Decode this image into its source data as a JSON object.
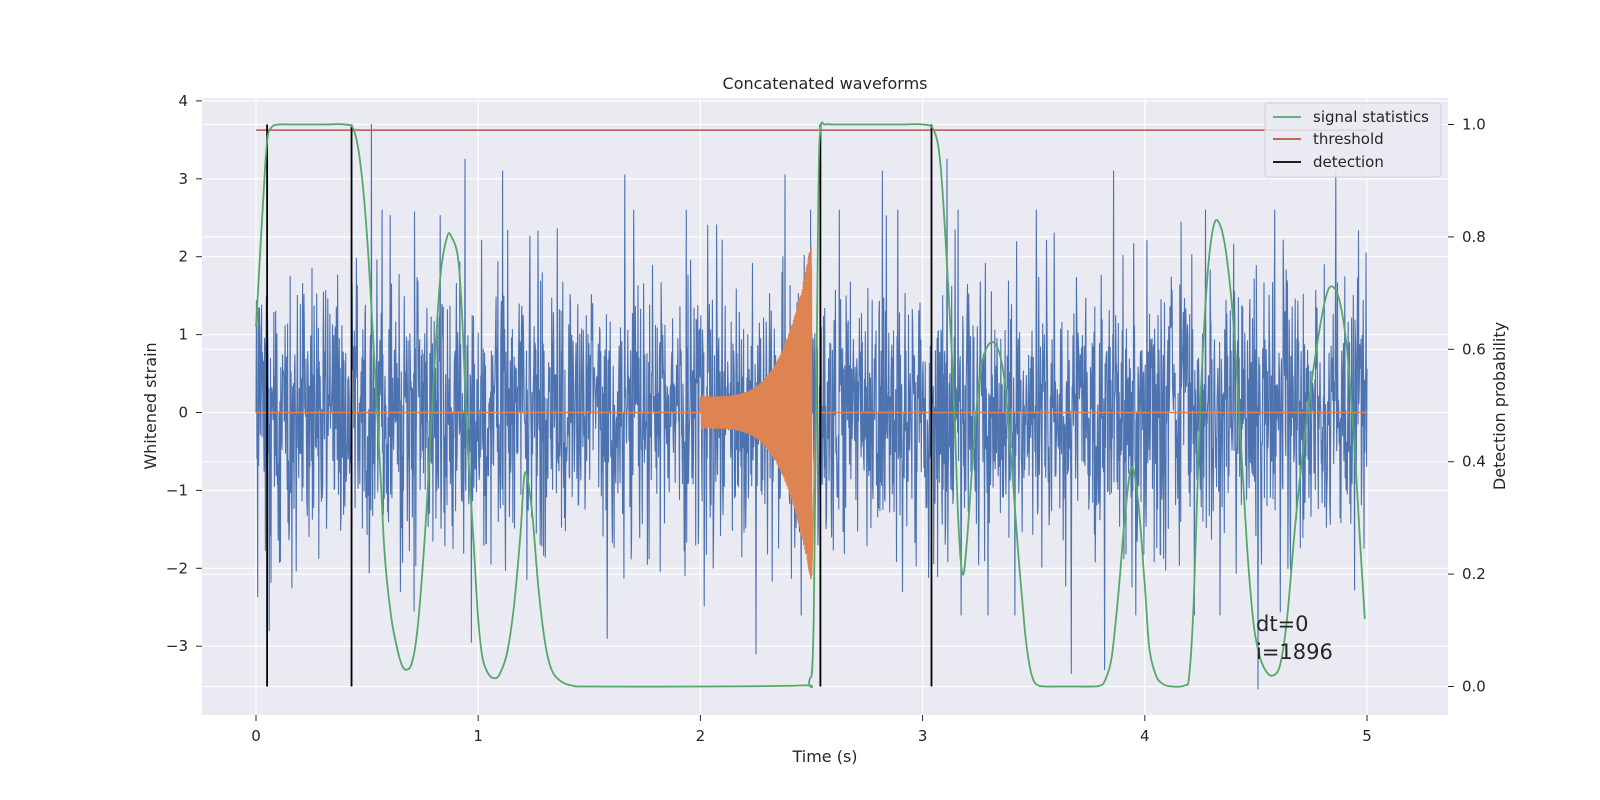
{
  "chart_data": {
    "type": "line",
    "title": "Concatenated waveforms",
    "xlabel": "Time (s)",
    "ylabel": "Whitened strain",
    "y2label": "Detection probability",
    "xlim": [
      -0.25,
      5.35
    ],
    "ylim": [
      -3.85,
      4.05
    ],
    "y2lim": [
      -0.045,
      1.045
    ],
    "x_ticks": [
      0,
      1,
      2,
      3,
      4,
      5
    ],
    "y_ticks": [
      -3,
      -2,
      -1,
      0,
      1,
      2,
      3,
      4
    ],
    "y2_ticks": [
      0.0,
      0.2,
      0.4,
      0.6,
      0.8,
      1.0
    ],
    "x_tick_labels": [
      "0",
      "1",
      "2",
      "3",
      "4",
      "5"
    ],
    "y_tick_labels": [
      "−3",
      "−2",
      "−1",
      "0",
      "1",
      "2",
      "3",
      "4"
    ],
    "y2_tick_labels": [
      "0.0",
      "0.2",
      "0.4",
      "0.6",
      "0.8",
      "1.0"
    ],
    "grid": true,
    "legend_position": "top-right",
    "colors": {
      "background": "#eaeaf2",
      "grid": "#ffffff",
      "noise": "#4c72b0",
      "template": "#dd8452",
      "signal_statistics": "#55a868",
      "threshold": "#c44e52",
      "detection": "#000000"
    },
    "noise_trace": {
      "x_range": [
        0,
        5
      ],
      "amplitude_std": 0.9,
      "peaks": [
        {
          "x": 0.52,
          "y": 3.7
        },
        {
          "x": 0.94,
          "y": 3.25
        },
        {
          "x": 1.11,
          "y": 3.1
        },
        {
          "x": 1.66,
          "y": 3.05
        },
        {
          "x": 2.38,
          "y": 3.05
        },
        {
          "x": 2.82,
          "y": 3.1
        },
        {
          "x": 3.11,
          "y": 3.25
        },
        {
          "x": 3.86,
          "y": 3.1
        },
        {
          "x": 4.86,
          "y": 3.1
        },
        {
          "x": 4.51,
          "y": -3.55
        },
        {
          "x": 0.06,
          "y": -2.8
        },
        {
          "x": 1.58,
          "y": -2.9
        },
        {
          "x": 2.25,
          "y": -3.1
        },
        {
          "x": 3.67,
          "y": -3.35
        },
        {
          "x": 3.82,
          "y": -3.3
        },
        {
          "x": 0.97,
          "y": -2.95
        }
      ]
    },
    "template_waveform": {
      "x_start": 2.0,
      "x_peak": 2.5,
      "x_end": 2.52,
      "peak_amplitude": 2.2
    },
    "series": [
      {
        "name": "signal statistics",
        "x": [
          0.0,
          0.03,
          0.05,
          0.07,
          0.1,
          0.15,
          0.2,
          0.3,
          0.4,
          0.44,
          0.47,
          0.5,
          0.53,
          0.56,
          0.58,
          0.61,
          0.64,
          0.66,
          0.68,
          0.7,
          0.72,
          0.74,
          0.77,
          0.8,
          0.83,
          0.86,
          0.88,
          0.91,
          0.93,
          0.95,
          0.98,
          1.0,
          1.02,
          1.05,
          1.08,
          1.1,
          1.13,
          1.16,
          1.19,
          1.21,
          1.24,
          1.27,
          1.3,
          1.33,
          1.37,
          1.42,
          1.5,
          2.0,
          2.46,
          2.49,
          2.51,
          2.53,
          2.54,
          2.56,
          2.6,
          2.7,
          2.9,
          3.0,
          3.05,
          3.08,
          3.11,
          3.14,
          3.16,
          3.18,
          3.2,
          3.23,
          3.26,
          3.3,
          3.34,
          3.37,
          3.4,
          3.43,
          3.46,
          3.48,
          3.5,
          3.52,
          3.55,
          3.6,
          3.7,
          3.77,
          3.8,
          3.82,
          3.85,
          3.88,
          3.91,
          3.94,
          3.97,
          4.0,
          4.02,
          4.05,
          4.08,
          4.12,
          4.18,
          4.2,
          4.22,
          4.25,
          4.28,
          4.31,
          4.34,
          4.37,
          4.4,
          4.43,
          4.46,
          4.49,
          4.52,
          4.55,
          4.58,
          4.61,
          4.64,
          4.68,
          4.73,
          4.78,
          4.82,
          4.85,
          4.88,
          4.91,
          4.94,
          4.97,
          4.99
        ],
        "values": [
          0.64,
          0.85,
          0.97,
          0.995,
          1.0,
          1.0,
          1.0,
          1.0,
          1.0,
          0.99,
          0.93,
          0.8,
          0.6,
          0.38,
          0.23,
          0.12,
          0.06,
          0.035,
          0.03,
          0.04,
          0.08,
          0.16,
          0.33,
          0.55,
          0.73,
          0.8,
          0.8,
          0.76,
          0.64,
          0.45,
          0.25,
          0.12,
          0.05,
          0.02,
          0.015,
          0.025,
          0.06,
          0.14,
          0.27,
          0.38,
          0.32,
          0.18,
          0.08,
          0.03,
          0.01,
          0.002,
          0.0,
          0.0,
          0.002,
          0.01,
          0.12,
          0.85,
          0.99,
          1.0,
          1.0,
          1.0,
          1.0,
          1.0,
          0.99,
          0.93,
          0.75,
          0.52,
          0.3,
          0.2,
          0.26,
          0.43,
          0.56,
          0.61,
          0.6,
          0.54,
          0.4,
          0.24,
          0.1,
          0.04,
          0.01,
          0.002,
          0.0,
          0.0,
          0.0,
          0.0,
          0.002,
          0.01,
          0.05,
          0.16,
          0.3,
          0.39,
          0.33,
          0.18,
          0.07,
          0.02,
          0.005,
          0.0,
          0.002,
          0.02,
          0.15,
          0.5,
          0.72,
          0.82,
          0.82,
          0.76,
          0.64,
          0.45,
          0.25,
          0.11,
          0.05,
          0.025,
          0.02,
          0.04,
          0.12,
          0.3,
          0.48,
          0.62,
          0.7,
          0.71,
          0.68,
          0.6,
          0.45,
          0.25,
          0.12
        ]
      },
      {
        "name": "threshold",
        "x": [
          0.0,
          5.0
        ],
        "values": [
          0.99,
          0.99
        ]
      },
      {
        "name": "detection",
        "x": [
          0.05,
          0.43,
          2.54,
          3.04
        ],
        "values": [
          1.0,
          1.0,
          1.0,
          1.0
        ]
      }
    ],
    "legend": [
      "signal statistics",
      "threshold",
      "detection"
    ],
    "annotations": [
      "dt=0",
      "i=1896"
    ]
  }
}
